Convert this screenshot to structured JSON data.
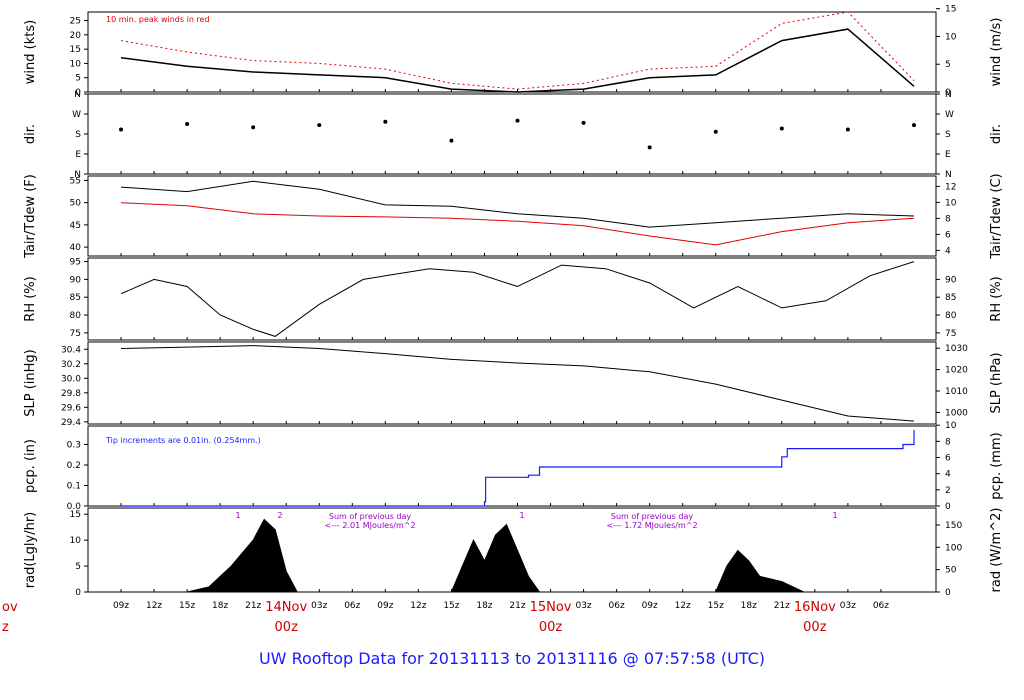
{
  "footer_title": "UW Rooftop Data for 20131113  to  20131116 @ 07:57:58  (UTC)",
  "colors": {
    "black": "#000000",
    "red": "#e00000",
    "blue": "#1a1aff",
    "purple": "#9900cc"
  },
  "x_axis": {
    "hour_ticks": [
      "09z",
      "12z",
      "15z",
      "18z",
      "21z",
      "",
      "03z",
      "06z",
      "09z",
      "12z",
      "15z",
      "18z",
      "21z",
      "",
      "03z",
      "06z",
      "09z",
      "12z",
      "15z",
      "18z",
      "21z",
      "",
      "03z",
      "06z"
    ],
    "day_labels": [
      {
        "top": "14Nov",
        "bottom": "00z"
      },
      {
        "top": "15Nov",
        "bottom": "00z"
      },
      {
        "top": "16Nov",
        "bottom": "00z"
      }
    ],
    "left_edge_top": "ov",
    "left_edge_bottom": "z"
  },
  "chart_data": [
    {
      "type": "line",
      "id": "wind",
      "ylabel_left": "wind (kts)",
      "ylabel_right": "wind (m/s)",
      "yticks_left": [
        "0",
        "5",
        "10",
        "15",
        "20",
        "25"
      ],
      "yticks_right": [
        "0",
        "5",
        "10",
        "15"
      ],
      "annotation": "10 min. peak winds in red",
      "x_hours": [
        0,
        6,
        12,
        18,
        24,
        30,
        36,
        42,
        48,
        54,
        60,
        66,
        72
      ],
      "series": [
        {
          "values": [
            12,
            9,
            7,
            6,
            5,
            1,
            0,
            1,
            5,
            6,
            18,
            22,
            2
          ]
        },
        {
          "values": [
            18,
            14,
            11,
            10,
            8,
            3,
            1,
            3,
            8,
            9,
            24,
            28,
            4
          ]
        }
      ]
    },
    {
      "type": "scatter",
      "id": "dir",
      "ylabel_left": "dir.",
      "ylabel_right": "dir.",
      "yticks_left": [
        "N",
        "E",
        "S",
        "W",
        "N"
      ],
      "yticks_right": [
        "N",
        "E",
        "S",
        "W",
        "N"
      ],
      "x_hours": [
        0,
        6,
        12,
        18,
        24,
        30,
        36,
        42,
        48,
        54,
        60,
        66,
        72
      ],
      "values": [
        200,
        225,
        210,
        220,
        235,
        150,
        240,
        230,
        120,
        190,
        205,
        200,
        220
      ]
    },
    {
      "type": "line",
      "id": "temp",
      "ylabel_left": "Tair/Tdew (F)",
      "ylabel_right": "Tair/Tdew (C)",
      "yticks_left": [
        "40",
        "45",
        "50",
        "55"
      ],
      "yticks_right": [
        "4",
        "6",
        "8",
        "10",
        "12"
      ],
      "x_hours": [
        0,
        6,
        12,
        18,
        24,
        30,
        36,
        42,
        48,
        54,
        60,
        66,
        72
      ],
      "series": [
        {
          "values": [
            53.5,
            52.5,
            54.8,
            53.0,
            49.5,
            49.2,
            47.5,
            46.5,
            44.5,
            45.5,
            46.5,
            47.5,
            47.0
          ]
        },
        {
          "values": [
            50.0,
            49.3,
            47.5,
            47.0,
            46.8,
            46.5,
            45.8,
            44.8,
            42.5,
            40.5,
            43.5,
            45.5,
            46.5
          ]
        }
      ]
    },
    {
      "type": "line",
      "id": "rh",
      "ylabel_left": "RH (%)",
      "ylabel_right": "RH (%)",
      "yticks_left": [
        "75",
        "80",
        "85",
        "90",
        "95"
      ],
      "yticks_right": [
        "75",
        "80",
        "85",
        "90"
      ],
      "x_hours": [
        0,
        3,
        6,
        9,
        12,
        14,
        18,
        22,
        24,
        28,
        32,
        36,
        40,
        44,
        48,
        52,
        56,
        60,
        64,
        68,
        72
      ],
      "values": [
        86,
        90,
        88,
        80,
        76,
        74,
        83,
        90,
        91,
        93,
        92,
        88,
        94,
        93,
        89,
        82,
        88,
        82,
        84,
        91,
        95
      ]
    },
    {
      "type": "line",
      "id": "slp",
      "ylabel_left": "SLP (inHg)",
      "ylabel_right": "SLP (hPa)",
      "yticks_left": [
        "29.4",
        "29.6",
        "29.8",
        "30.0",
        "30.2",
        "30.4"
      ],
      "yticks_right": [
        "1000",
        "1010",
        "1020",
        "1030"
      ],
      "x_hours": [
        0,
        6,
        12,
        18,
        24,
        30,
        36,
        42,
        48,
        54,
        60,
        66,
        72
      ],
      "values": [
        30.41,
        30.43,
        30.45,
        30.41,
        30.34,
        30.26,
        30.21,
        30.17,
        30.09,
        29.92,
        29.7,
        29.48,
        29.41
      ]
    },
    {
      "type": "line",
      "id": "pcp",
      "ylabel_left": "pcp. (in)",
      "ylabel_right": "pcp. (mm)",
      "yticks_left": [
        "0.0",
        "0.1",
        "0.2",
        "0.3"
      ],
      "yticks_right": [
        "0",
        "2",
        "4",
        "6",
        "8",
        "10"
      ],
      "annotation": "Tip increments are 0.01in. (0.254mm.)",
      "x_hours": [
        0,
        32,
        33,
        33.1,
        37,
        38,
        59,
        60,
        60.5,
        71,
        72
      ],
      "values": [
        0,
        0,
        0.02,
        0.14,
        0.15,
        0.19,
        0.19,
        0.24,
        0.28,
        0.3,
        0.37
      ]
    },
    {
      "type": "area",
      "id": "rad",
      "ylabel_left": "rad(Lgly/hr)",
      "ylabel_right": "rad (W/m^2)",
      "yticks_left": [
        "0",
        "5",
        "10",
        "15"
      ],
      "yticks_right": [
        "0",
        "50",
        "100",
        "150"
      ],
      "note1_text": "Sum of previous day",
      "note1_value": "<--- 2.01 MJoules/m^2",
      "note2_text": "Sum of previous day",
      "note2_value": "<--- 1.72 MJoules/m^2",
      "marks": [
        "1",
        "2",
        "1",
        "1"
      ],
      "x_hours": [
        6,
        8,
        10,
        12,
        13,
        14,
        15,
        16,
        30,
        31,
        32,
        33,
        34,
        35,
        36,
        37,
        38,
        54,
        55,
        56,
        57,
        58,
        60,
        62
      ],
      "values": [
        0,
        1,
        5,
        10,
        14,
        12,
        4,
        0,
        0,
        5,
        10,
        6,
        11,
        13,
        8,
        3,
        0,
        0,
        5,
        8,
        6,
        3,
        2,
        0
      ]
    }
  ]
}
